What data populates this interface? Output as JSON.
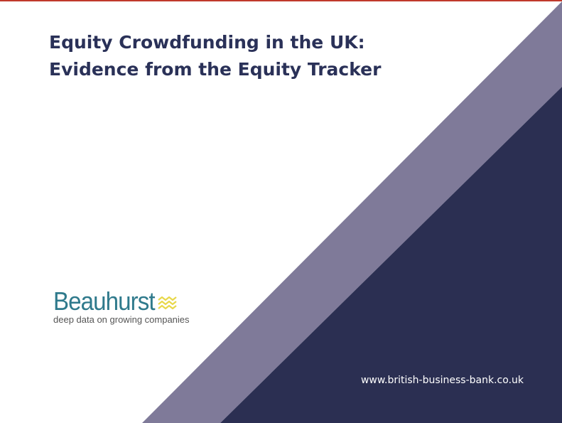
{
  "title": {
    "line1": "Equity Crowdfunding in the UK:",
    "line2": "Evidence from the Equity Tracker"
  },
  "logo": {
    "name": "Beauhurst",
    "tagline": "deep data on growing companies",
    "icon": "waves-icon"
  },
  "footer": {
    "website": "www.british-business-bank.co.uk"
  },
  "colors": {
    "title": "#2a3158",
    "navy": "#2b2f52",
    "lavender": "#7f7a99",
    "teal": "#2f7a8c",
    "yellow": "#e8d84a",
    "top_rule": "#c0392b"
  }
}
